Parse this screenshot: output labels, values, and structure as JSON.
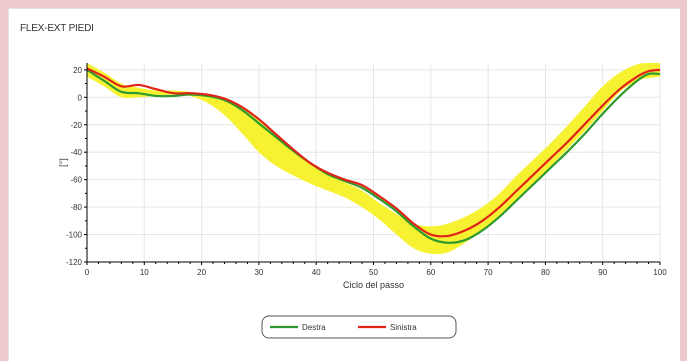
{
  "panel": {
    "title": "FLEX-EXT PIEDI"
  },
  "colors": {
    "band": "#f6f232",
    "destra": "#2e9a2e",
    "sinistra": "#e02418",
    "axis": "#000000"
  },
  "chart_data": {
    "type": "line",
    "title": "FLEX-EXT PIEDI",
    "xlabel": "Ciclo del passo",
    "ylabel": "[°]",
    "xlim": [
      0,
      100
    ],
    "ylim": [
      -120,
      25
    ],
    "xticks": [
      0,
      10,
      20,
      30,
      40,
      50,
      60,
      70,
      80,
      90,
      100
    ],
    "yticks": [
      20,
      0,
      -20,
      -40,
      -60,
      -80,
      -100,
      -120
    ],
    "grid": true,
    "legend": "bottom-center",
    "x": [
      0,
      3,
      6,
      9,
      12,
      15,
      18,
      21,
      24,
      27,
      30,
      33,
      36,
      39,
      42,
      45,
      48,
      51,
      54,
      57,
      60,
      63,
      66,
      69,
      72,
      75,
      78,
      81,
      84,
      87,
      90,
      93,
      96,
      98,
      100
    ],
    "band": {
      "upper": [
        25,
        18,
        10,
        7,
        5,
        5,
        4,
        2,
        -2,
        -7,
        -17,
        -27,
        -38,
        -48,
        -56,
        -62,
        -68,
        -77,
        -85,
        -92,
        -94,
        -92,
        -87,
        -80,
        -70,
        -57,
        -45,
        -33,
        -20,
        -6,
        8,
        18,
        24,
        25,
        25
      ],
      "lower": [
        15,
        8,
        0,
        0,
        1,
        2,
        1,
        -4,
        -13,
        -26,
        -40,
        -50,
        -57,
        -63,
        -68,
        -73,
        -80,
        -89,
        -100,
        -110,
        -114,
        -113,
        -106,
        -97,
        -87,
        -75,
        -63,
        -50,
        -37,
        -24,
        -10,
        4,
        12,
        14,
        15
      ]
    },
    "series": [
      {
        "name": "Destra",
        "color": "#2e9a2e",
        "values": [
          20,
          12,
          4,
          3,
          1,
          1,
          2,
          1,
          -2,
          -9,
          -19,
          -29,
          -39,
          -48,
          -56,
          -61,
          -66,
          -74,
          -83,
          -94,
          -103,
          -106,
          -104,
          -97,
          -87,
          -75,
          -63,
          -51,
          -39,
          -26,
          -12,
          1,
          12,
          17,
          17
        ]
      },
      {
        "name": "Sinistra",
        "color": "#e02418",
        "values": [
          21,
          15,
          8,
          9,
          6,
          3,
          3,
          2,
          -1,
          -7,
          -16,
          -27,
          -38,
          -48,
          -55,
          -60,
          -64,
          -72,
          -81,
          -92,
          -100,
          -101,
          -97,
          -90,
          -80,
          -68,
          -56,
          -44,
          -32,
          -19,
          -6,
          6,
          15,
          19,
          20
        ]
      }
    ]
  }
}
